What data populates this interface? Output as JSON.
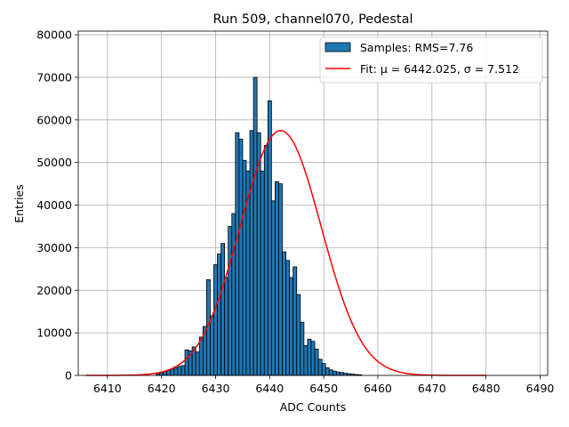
{
  "chart_data": {
    "type": "bar",
    "title": "Run 509, channel070, Pedestal",
    "xlabel": "ADC Counts",
    "ylabel": "Entries",
    "xlim": [
      6404.6,
      6491.4
    ],
    "ylim": [
      0,
      80850
    ],
    "grid": true,
    "legend_position": "top-right",
    "x_ticks": [
      6410,
      6420,
      6430,
      6440,
      6450,
      6460,
      6470,
      6480,
      6490
    ],
    "y_ticks": [
      0,
      10000,
      20000,
      30000,
      40000,
      50000,
      60000,
      70000,
      80000
    ],
    "x_tick_labels": [
      "6410",
      "6420",
      "6430",
      "6440",
      "6450",
      "6460",
      "6470",
      "6480",
      "6490"
    ],
    "y_tick_labels": [
      "0",
      "10000",
      "20000",
      "30000",
      "40000",
      "50000",
      "60000",
      "70000",
      "80000"
    ],
    "histogram": {
      "name": "Samples: RMS=7.76",
      "color": "#1f77b4",
      "edge_color": "#000000",
      "bin_start": 6419,
      "bin_width": 0.6667,
      "counts": [
        300,
        600,
        900,
        1200,
        1500,
        1800,
        2100,
        2300,
        6000,
        5800,
        6700,
        5500,
        9000,
        11500,
        22500,
        14000,
        26000,
        28500,
        31000,
        23000,
        35000,
        38000,
        57000,
        55500,
        50500,
        48000,
        57500,
        70000,
        57000,
        48000,
        54000,
        64500,
        41000,
        45500,
        45000,
        29000,
        27000,
        23000,
        25500,
        19000,
        12500,
        7000,
        8500,
        8000,
        6200,
        3800,
        2800,
        1800,
        1300,
        1000,
        800,
        700,
        500,
        400,
        300,
        200,
        150
      ]
    },
    "fit": {
      "name": "Fit: μ = 6442.025, σ = 7.512",
      "color": "#ff0000",
      "mu": 6442.025,
      "sigma": 7.512,
      "amplitude": 57500,
      "x_start": 6406,
      "x_end": 6480
    },
    "legend": {
      "samples_label": "Samples: RMS=7.76",
      "fit_label": "Fit: μ = 6442.025, σ = 7.512"
    }
  }
}
